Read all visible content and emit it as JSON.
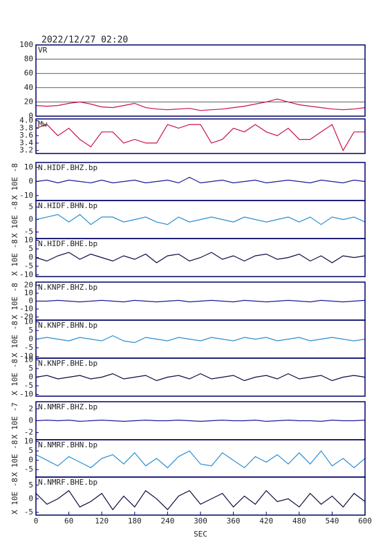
{
  "header": {
    "title": "2022/12/27 02:20"
  },
  "chart_data": [
    {
      "type": "line",
      "title": "VR",
      "color": "#cc1144",
      "grid": true,
      "xlim": [
        0,
        600
      ],
      "ylim": [
        0,
        100
      ],
      "yticks": [
        0,
        20,
        40,
        60,
        80,
        100
      ],
      "x": [
        0,
        20,
        40,
        60,
        80,
        100,
        120,
        140,
        160,
        180,
        200,
        220,
        240,
        260,
        280,
        300,
        320,
        340,
        360,
        380,
        400,
        420,
        440,
        460,
        480,
        500,
        520,
        540,
        560,
        580,
        600
      ],
      "values": [
        15,
        14,
        15,
        18,
        20,
        17,
        13,
        12,
        15,
        18,
        12,
        10,
        9,
        10,
        11,
        8,
        9,
        10,
        12,
        14,
        17,
        20,
        24,
        20,
        16,
        14,
        12,
        10,
        9,
        10,
        12
      ]
    },
    {
      "type": "line",
      "title": "Mw",
      "color": "#cc1144",
      "xlim": [
        0,
        600
      ],
      "ylim": [
        3.12,
        4.05
      ],
      "yticks": [
        3.2,
        3.4,
        3.6,
        3.8,
        {
          "value": 4,
          "label": "4.0"
        }
      ],
      "x": [
        0,
        20,
        40,
        60,
        80,
        100,
        120,
        140,
        160,
        180,
        200,
        220,
        240,
        260,
        280,
        300,
        320,
        340,
        360,
        380,
        400,
        420,
        440,
        460,
        480,
        500,
        520,
        540,
        560,
        580,
        600
      ],
      "values": [
        3.8,
        3.9,
        3.6,
        3.8,
        3.5,
        3.3,
        3.7,
        3.7,
        3.4,
        3.5,
        3.4,
        3.4,
        3.9,
        3.8,
        3.9,
        3.9,
        3.4,
        3.5,
        3.8,
        3.7,
        3.9,
        3.7,
        3.6,
        3.8,
        3.5,
        3.5,
        3.7,
        3.9,
        3.2,
        3.7,
        3.7
      ]
    },
    {
      "type": "line",
      "title": "N.HIDF.BHZ.bp",
      "ylabel": "X 10E -8",
      "color": "#1a1a9a",
      "xlim": [
        0,
        600
      ],
      "ylim": [
        -13.5,
        13.5
      ],
      "yticks": [
        -10,
        0,
        10
      ],
      "x": [
        0,
        20,
        40,
        60,
        80,
        100,
        120,
        140,
        160,
        180,
        200,
        220,
        240,
        260,
        280,
        300,
        320,
        340,
        360,
        380,
        400,
        420,
        440,
        460,
        480,
        500,
        520,
        540,
        560,
        580,
        600
      ],
      "values": [
        0,
        1,
        -1,
        1,
        0,
        -1,
        1,
        -1,
        0,
        1,
        -1,
        0,
        1,
        -1,
        3,
        -1,
        0,
        1,
        -1,
        0,
        1,
        -1,
        0,
        1,
        0,
        -1,
        1,
        0,
        -1,
        1,
        0
      ]
    },
    {
      "type": "line",
      "title": "N.HIDF.BHN.bp",
      "ylabel": "X 10E -8",
      "color": "#2a8ed0",
      "xlim": [
        0,
        600
      ],
      "ylim": [
        -7.6,
        7.6
      ],
      "yticks": [
        -5,
        0,
        5
      ],
      "x": [
        0,
        20,
        40,
        60,
        80,
        100,
        120,
        140,
        160,
        180,
        200,
        220,
        240,
        260,
        280,
        300,
        320,
        340,
        360,
        380,
        400,
        420,
        440,
        460,
        480,
        500,
        520,
        540,
        560,
        580,
        600
      ],
      "values": [
        0,
        1,
        2,
        -1,
        2,
        -2,
        1,
        1,
        -1,
        0,
        1,
        -1,
        -2,
        1,
        -1,
        0,
        1,
        0,
        -1,
        1,
        0,
        -1,
        0,
        1,
        -1,
        1,
        -2,
        1,
        0,
        1,
        -1
      ]
    },
    {
      "type": "line",
      "title": "N.HIDF.BHE.bp",
      "ylabel": "X 10E -8",
      "color": "#0a0a40",
      "xlim": [
        0,
        600
      ],
      "ylim": [
        -11,
        11
      ],
      "yticks": [
        -10,
        -5,
        0,
        5,
        10
      ],
      "x": [
        0,
        20,
        40,
        60,
        80,
        100,
        120,
        140,
        160,
        180,
        200,
        220,
        240,
        260,
        280,
        300,
        320,
        340,
        360,
        380,
        400,
        420,
        440,
        460,
        480,
        500,
        520,
        540,
        560,
        580,
        600
      ],
      "values": [
        0,
        -2,
        1,
        3,
        -1,
        2,
        0,
        -2,
        1,
        -1,
        2,
        -3,
        1,
        2,
        -2,
        0,
        3,
        -1,
        1,
        -2,
        1,
        2,
        -1,
        0,
        2,
        -2,
        1,
        -3,
        1,
        0,
        1
      ]
    },
    {
      "type": "line",
      "title": "N.KNPF.BHZ.bp",
      "ylabel": "X 10E -8",
      "color": "#1a1a9a",
      "xlim": [
        0,
        600
      ],
      "ylim": [
        -24,
        24
      ],
      "yticks": [
        -20,
        -10,
        0,
        10,
        20
      ],
      "x": [
        0,
        20,
        40,
        60,
        80,
        100,
        120,
        140,
        160,
        180,
        200,
        220,
        240,
        260,
        280,
        300,
        320,
        340,
        360,
        380,
        400,
        420,
        440,
        460,
        480,
        500,
        520,
        540,
        560,
        580,
        600
      ],
      "values": [
        0,
        0,
        1,
        0,
        -1,
        0,
        1,
        0,
        -1,
        1,
        0,
        -1,
        0,
        1,
        -1,
        0,
        1,
        0,
        -1,
        1,
        0,
        -1,
        0,
        1,
        0,
        -1,
        1,
        0,
        -1,
        0,
        1
      ]
    },
    {
      "type": "line",
      "title": "N.KNPF.BHN.bp",
      "ylabel": "X 10E -8",
      "color": "#2a8ed0",
      "xlim": [
        0,
        600
      ],
      "ylim": [
        -11,
        11
      ],
      "yticks": [
        -10,
        -5,
        0,
        5,
        10
      ],
      "x": [
        0,
        20,
        40,
        60,
        80,
        100,
        120,
        140,
        160,
        180,
        200,
        220,
        240,
        260,
        280,
        300,
        320,
        340,
        360,
        380,
        400,
        420,
        440,
        460,
        480,
        500,
        520,
        540,
        560,
        580,
        600
      ],
      "values": [
        0,
        1,
        0,
        -1,
        1,
        0,
        -1,
        2,
        -1,
        -2,
        1,
        0,
        -1,
        1,
        0,
        -1,
        1,
        0,
        -1,
        1,
        0,
        1,
        -1,
        0,
        1,
        -1,
        0,
        1,
        0,
        -1,
        0
      ]
    },
    {
      "type": "line",
      "title": "N.KNPF.BHE.bp",
      "ylabel": "X 10E -8",
      "color": "#0a0a40",
      "xlim": [
        0,
        600
      ],
      "ylim": [
        -11,
        11
      ],
      "yticks": [
        -10,
        -5,
        0,
        5,
        10
      ],
      "x": [
        0,
        20,
        40,
        60,
        80,
        100,
        120,
        140,
        160,
        180,
        200,
        220,
        240,
        260,
        280,
        300,
        320,
        340,
        360,
        380,
        400,
        420,
        440,
        460,
        480,
        500,
        520,
        540,
        560,
        580,
        600
      ],
      "values": [
        0,
        1,
        -1,
        0,
        1,
        -1,
        0,
        2,
        -1,
        0,
        1,
        -2,
        0,
        1,
        -1,
        2,
        -1,
        0,
        1,
        -2,
        0,
        1,
        -1,
        2,
        -1,
        0,
        1,
        -2,
        0,
        1,
        0
      ]
    },
    {
      "type": "line",
      "title": "N.NMRF.BHZ.bp",
      "ylabel": "X 10E -7",
      "color": "#1a1a9a",
      "xlim": [
        0,
        600
      ],
      "ylim": [
        -3.2,
        3.2
      ],
      "yticks": [
        -2,
        0,
        2
      ],
      "x": [
        0,
        20,
        40,
        60,
        80,
        100,
        120,
        140,
        160,
        180,
        200,
        220,
        240,
        260,
        280,
        300,
        320,
        340,
        360,
        380,
        400,
        420,
        440,
        460,
        480,
        500,
        520,
        540,
        560,
        580,
        600
      ],
      "values": [
        0,
        0.1,
        0,
        0.1,
        -0.1,
        0,
        0.1,
        0,
        -0.1,
        0,
        0.1,
        0,
        0,
        0.1,
        0,
        -0.1,
        0,
        0.1,
        0,
        0,
        0.1,
        -0.1,
        0,
        0.1,
        0,
        0,
        -0.1,
        0.1,
        0,
        0,
        0.1
      ]
    },
    {
      "type": "line",
      "title": "N.NMRF.BHN.bp",
      "ylabel": "X 10E -8",
      "color": "#2a8ed0",
      "xlim": [
        0,
        600
      ],
      "ylim": [
        -9,
        11
      ],
      "yticks": [
        -5,
        0,
        5,
        10
      ],
      "x": [
        0,
        20,
        40,
        60,
        80,
        100,
        120,
        140,
        160,
        180,
        200,
        220,
        240,
        260,
        280,
        300,
        320,
        340,
        360,
        380,
        400,
        420,
        440,
        460,
        480,
        500,
        520,
        540,
        560,
        580,
        600
      ],
      "values": [
        3,
        0,
        -3,
        2,
        -1,
        -4,
        1,
        3,
        -2,
        4,
        -3,
        1,
        -4,
        2,
        5,
        -2,
        -3,
        4,
        0,
        -4,
        2,
        -1,
        3,
        -2,
        4,
        -2,
        5,
        -3,
        1,
        -4,
        1
      ]
    },
    {
      "type": "line",
      "title": "N.NMRF.BHE.bp",
      "ylabel": "X 10E -8",
      "color": "#0a0a40",
      "xlim": [
        0,
        600
      ],
      "ylim": [
        -6,
        8
      ],
      "yticks": [
        -5,
        0,
        5
      ],
      "x": [
        0,
        20,
        40,
        60,
        80,
        100,
        120,
        140,
        160,
        180,
        200,
        220,
        240,
        260,
        280,
        300,
        320,
        340,
        360,
        380,
        400,
        420,
        440,
        460,
        480,
        500,
        520,
        540,
        560,
        580,
        600
      ],
      "values": [
        2,
        -2,
        0,
        3,
        -3,
        -1,
        2,
        -4,
        1,
        -3,
        3,
        0,
        -4,
        1,
        3,
        -2,
        0,
        2,
        -3,
        1,
        -2,
        3,
        -1,
        0,
        -3,
        2,
        -2,
        1,
        -3,
        2,
        -1
      ],
      "xticks": [
        0,
        60,
        120,
        180,
        240,
        300,
        360,
        420,
        480,
        540,
        600
      ],
      "xlabel": "SEC"
    }
  ]
}
